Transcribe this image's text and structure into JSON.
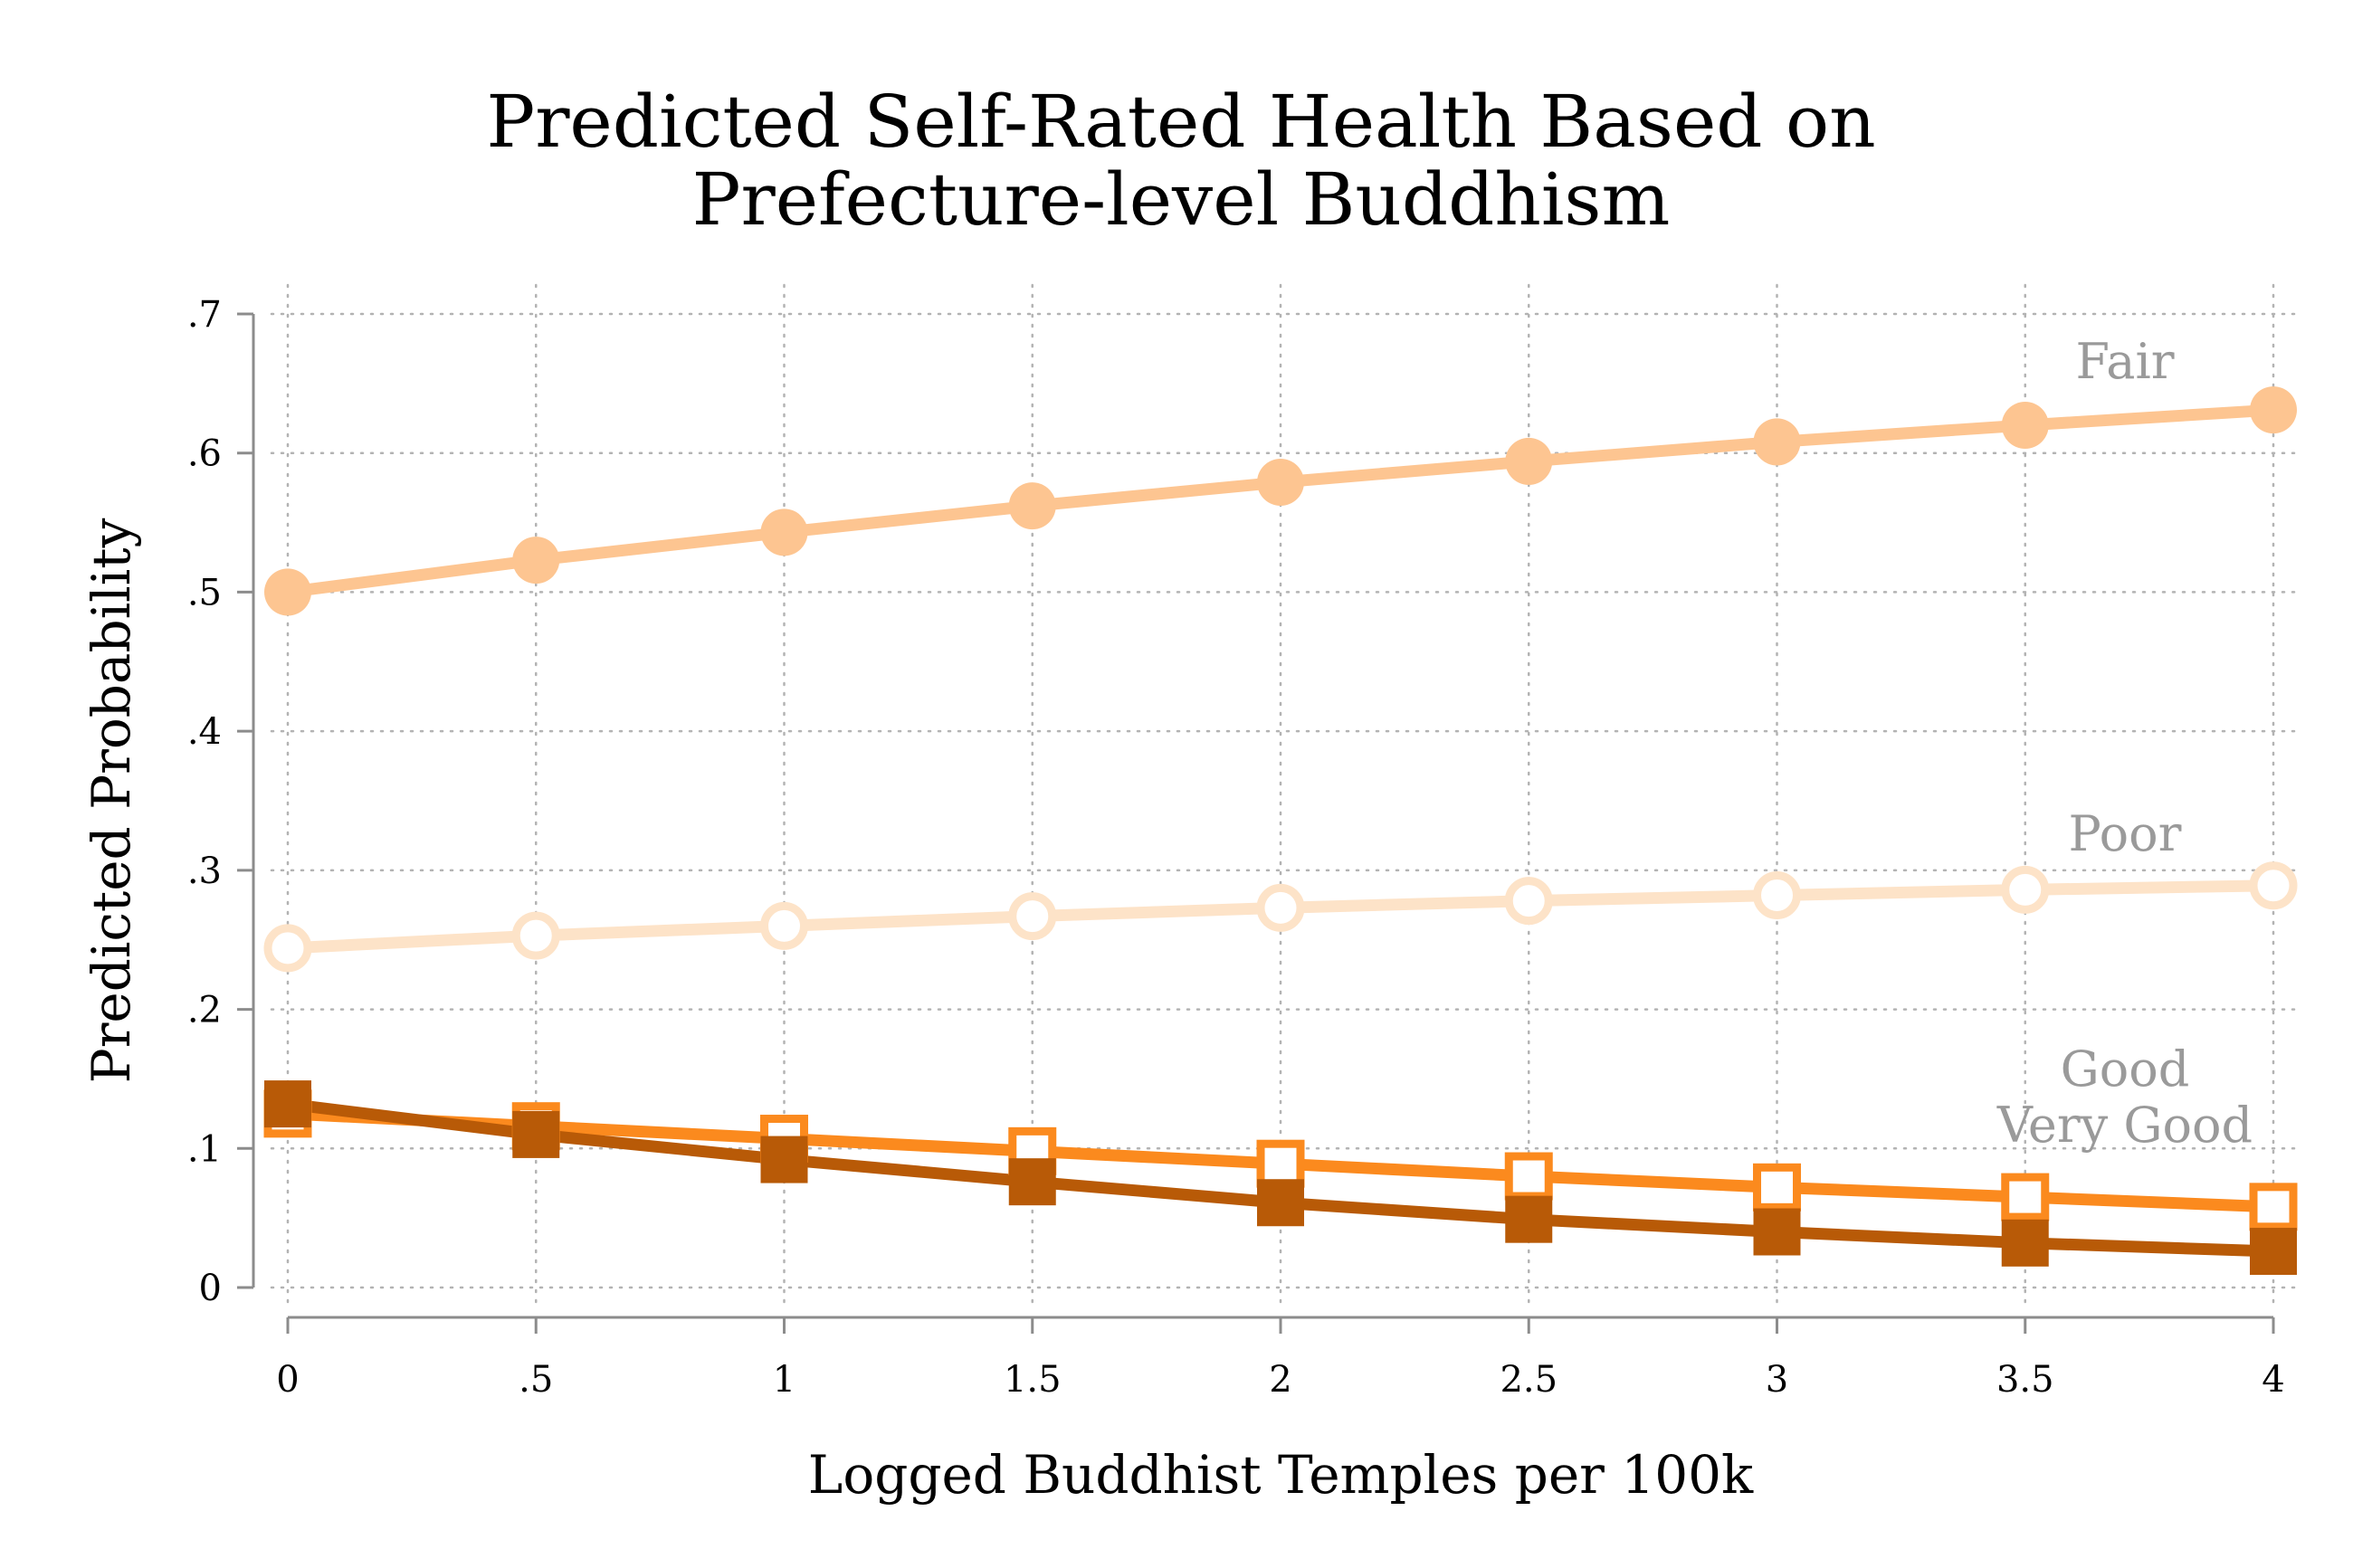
{
  "chart_data": {
    "type": "line",
    "title": [
      "Predicted Self-Rated Health Based on",
      "Prefecture-level Buddhism"
    ],
    "xlabel": "Logged Buddhist Temples per 100k",
    "ylabel": "Predicted Probability",
    "xlim": [
      0,
      4
    ],
    "ylim": [
      0,
      0.7
    ],
    "x": [
      0,
      0.5,
      1,
      1.5,
      2,
      2.5,
      3,
      3.5,
      4
    ],
    "x_ticks": [
      {
        "value": 0,
        "label": "0"
      },
      {
        "value": 0.5,
        "label": ".5"
      },
      {
        "value": 1,
        "label": "1"
      },
      {
        "value": 1.5,
        "label": "1.5"
      },
      {
        "value": 2,
        "label": "2"
      },
      {
        "value": 2.5,
        "label": "2.5"
      },
      {
        "value": 3,
        "label": "3"
      },
      {
        "value": 3.5,
        "label": "3.5"
      },
      {
        "value": 4,
        "label": "4"
      }
    ],
    "y_ticks": [
      {
        "value": 0,
        "label": "0"
      },
      {
        "value": 0.1,
        "label": ".1"
      },
      {
        "value": 0.2,
        "label": ".2"
      },
      {
        "value": 0.3,
        "label": ".3"
      },
      {
        "value": 0.4,
        "label": ".4"
      },
      {
        "value": 0.5,
        "label": ".5"
      },
      {
        "value": 0.6,
        "label": ".6"
      },
      {
        "value": 0.7,
        "label": ".7"
      }
    ],
    "grid": true,
    "series": [
      {
        "name": "Fair",
        "key": "fair",
        "color": "#fdc591",
        "marker": "filled-circle",
        "values": [
          0.5,
          0.523,
          0.543,
          0.562,
          0.579,
          0.594,
          0.608,
          0.62,
          0.631
        ]
      },
      {
        "name": "Poor",
        "key": "poor",
        "color": "#fde3c8",
        "marker": "hollow-circle",
        "values": [
          0.244,
          0.253,
          0.26,
          0.267,
          0.273,
          0.278,
          0.282,
          0.286,
          0.289
        ]
      },
      {
        "name": "Good",
        "key": "good",
        "color": "#fb8a1e",
        "marker": "hollow-square",
        "values": [
          0.125,
          0.116,
          0.107,
          0.098,
          0.089,
          0.08,
          0.072,
          0.065,
          0.058
        ]
      },
      {
        "name": "Very Good",
        "key": "very_good",
        "color": "#b85a07",
        "marker": "filled-square",
        "values": [
          0.132,
          0.11,
          0.092,
          0.076,
          0.061,
          0.049,
          0.04,
          0.032,
          0.026
        ]
      }
    ]
  }
}
